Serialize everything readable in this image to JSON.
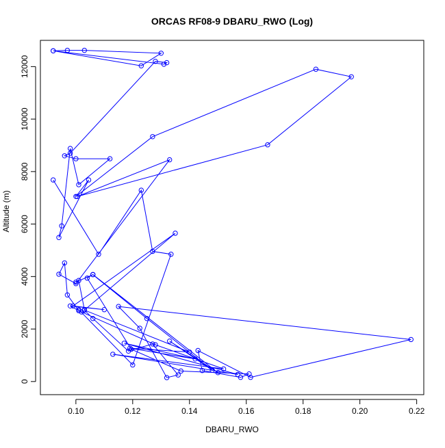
{
  "chart_data": {
    "type": "line",
    "title": "ORCAS RF08-9 DBARU_RWO (Log)",
    "xlabel": "DBARU_RWO",
    "ylabel": "Altitude (m)",
    "xlim": [
      0.0875,
      0.2225
    ],
    "ylim": [
      -500,
      13000
    ],
    "xticks": [
      "0.10",
      "0.12",
      "0.14",
      "0.16",
      "0.18",
      "0.20",
      "0.22"
    ],
    "yticks": [
      "0",
      "2000",
      "4000",
      "6000",
      "8000",
      "10000",
      "12000"
    ],
    "grid": false,
    "marker": "open-circle",
    "series": [
      {
        "color": "#0000ff",
        "x": [
          0.092,
          0.097,
          0.103,
          0.13,
          0.123,
          0.092,
          0.131,
          0.132,
          0.128,
          0.098,
          0.096,
          0.1,
          0.112,
          0.101,
          0.098,
          0.095,
          0.094,
          0.1045,
          0.1,
          0.127,
          0.1845,
          0.197,
          0.1675,
          0.1005,
          0.133,
          0.1,
          0.094,
          0.096,
          0.097,
          0.101,
          0.098,
          0.11,
          0.099,
          0.135,
          0.103,
          0.103,
          0.101,
          0.1,
          0.106,
          0.125,
          0.148,
          0.133,
          0.15,
          0.106,
          0.104,
          0.1195,
          0.137,
          0.161,
          0.158,
          0.1445,
          0.143,
          0.1615,
          0.218,
          0.115,
          0.1225,
          0.132,
          0.136,
          0.127,
          0.1185,
          0.106,
          0.103,
          0.14,
          0.119,
          0.142,
          0.117,
          0.157,
          0.113,
          0.152,
          0.128,
          0.102,
          0.101,
          0.12,
          0.1335,
          0.127,
          0.123,
          0.108,
          0.092
        ],
        "y": [
          12600,
          12620,
          12620,
          12510,
          12030,
          12600,
          12090,
          12150,
          12200,
          8700,
          8600,
          8490,
          8490,
          7500,
          8880,
          5930,
          5490,
          7680,
          7050,
          9330,
          11900,
          11610,
          9020,
          7050,
          8450,
          3730,
          4090,
          4520,
          3300,
          2700,
          2880,
          2740,
          2880,
          5650,
          2720,
          2740,
          3850,
          3790,
          4070,
          2400,
          430,
          1540,
          340,
          4080,
          3940,
          1230,
          400,
          290,
          160,
          420,
          1180,
          160,
          1600,
          2860,
          2030,
          150,
          250,
          1430,
          1160,
          2400,
          2720,
          1120,
          1270,
          860,
          1460,
          270,
          1040,
          480,
          1400,
          2650,
          2740,
          630,
          4850,
          4960,
          7290,
          4850,
          7680
        ]
      }
    ]
  }
}
